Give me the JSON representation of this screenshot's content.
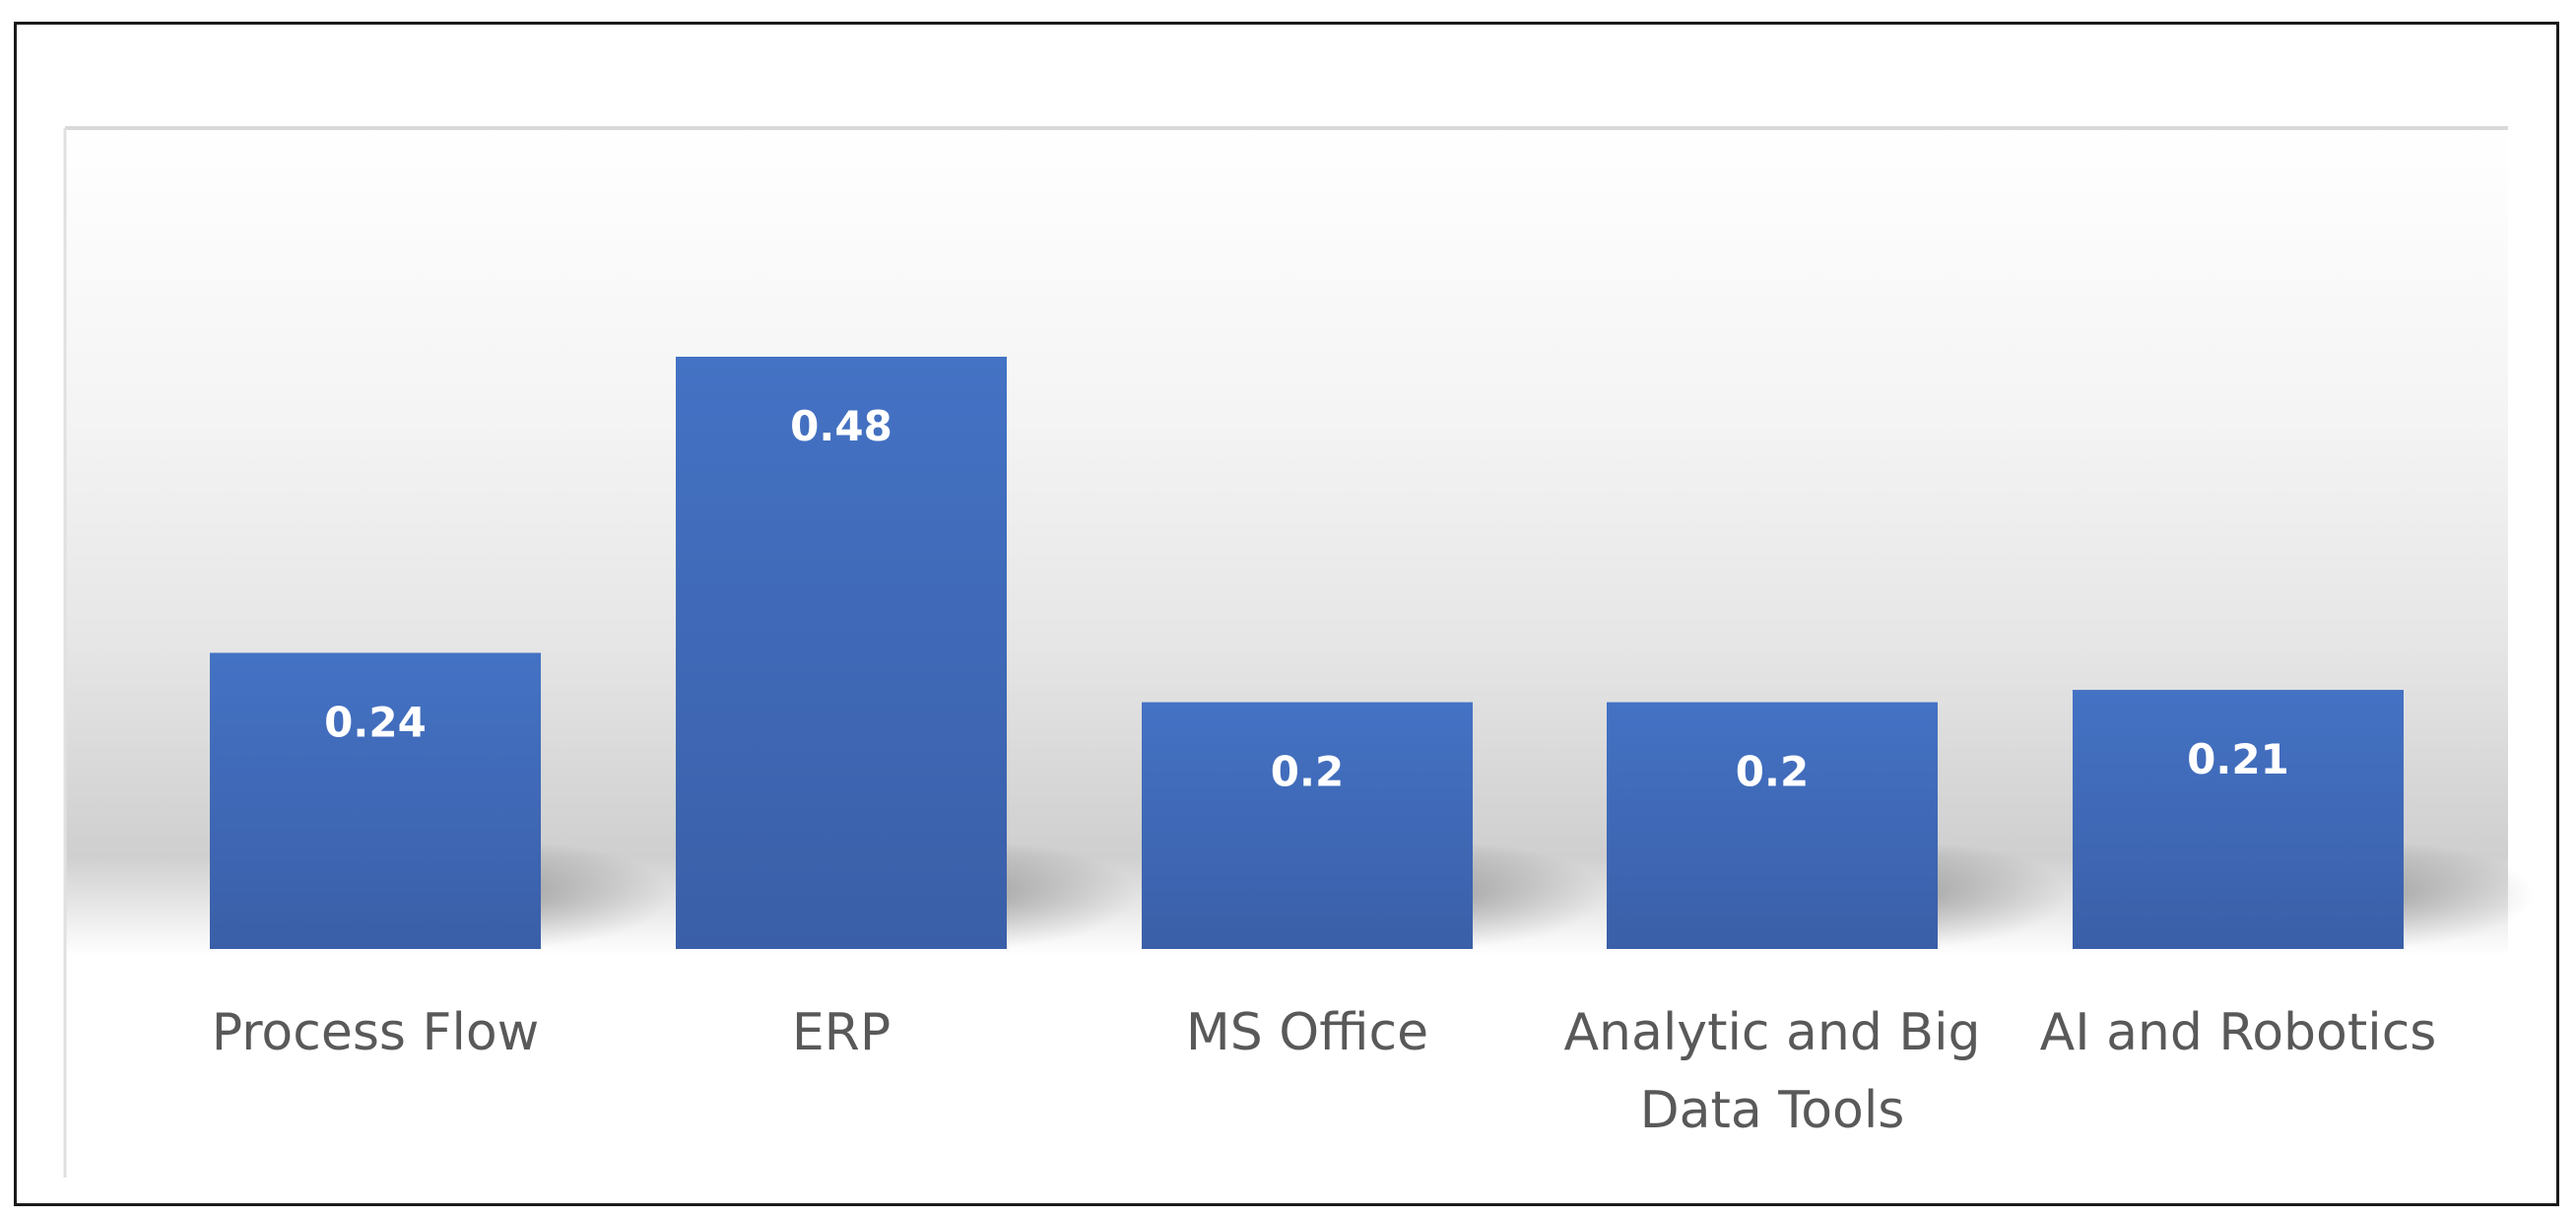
{
  "chart_data": {
    "type": "bar",
    "title": "",
    "xlabel": "",
    "ylabel": "",
    "categories": [
      [
        "Process Flow"
      ],
      [
        "ERP"
      ],
      [
        "MS Office"
      ],
      [
        "Analytic and Big",
        "Data Tools"
      ],
      [
        "AI and Robotics"
      ]
    ],
    "values": [
      0.24,
      0.48,
      0.2,
      0.2,
      0.21
    ],
    "value_labels": [
      "0.24",
      "0.48",
      "0.2",
      "0.2",
      "0.21"
    ],
    "ylim": [
      0,
      0.48
    ],
    "grid": false,
    "legend": "none",
    "colors": {
      "bar_top": "#4472C4",
      "bar_bottom": "#3A5FA8",
      "label_text": "#FFFFFF",
      "category_text": "#595959",
      "frame": "#1A1A1A",
      "plot_edge": "#D9D9D9"
    }
  }
}
